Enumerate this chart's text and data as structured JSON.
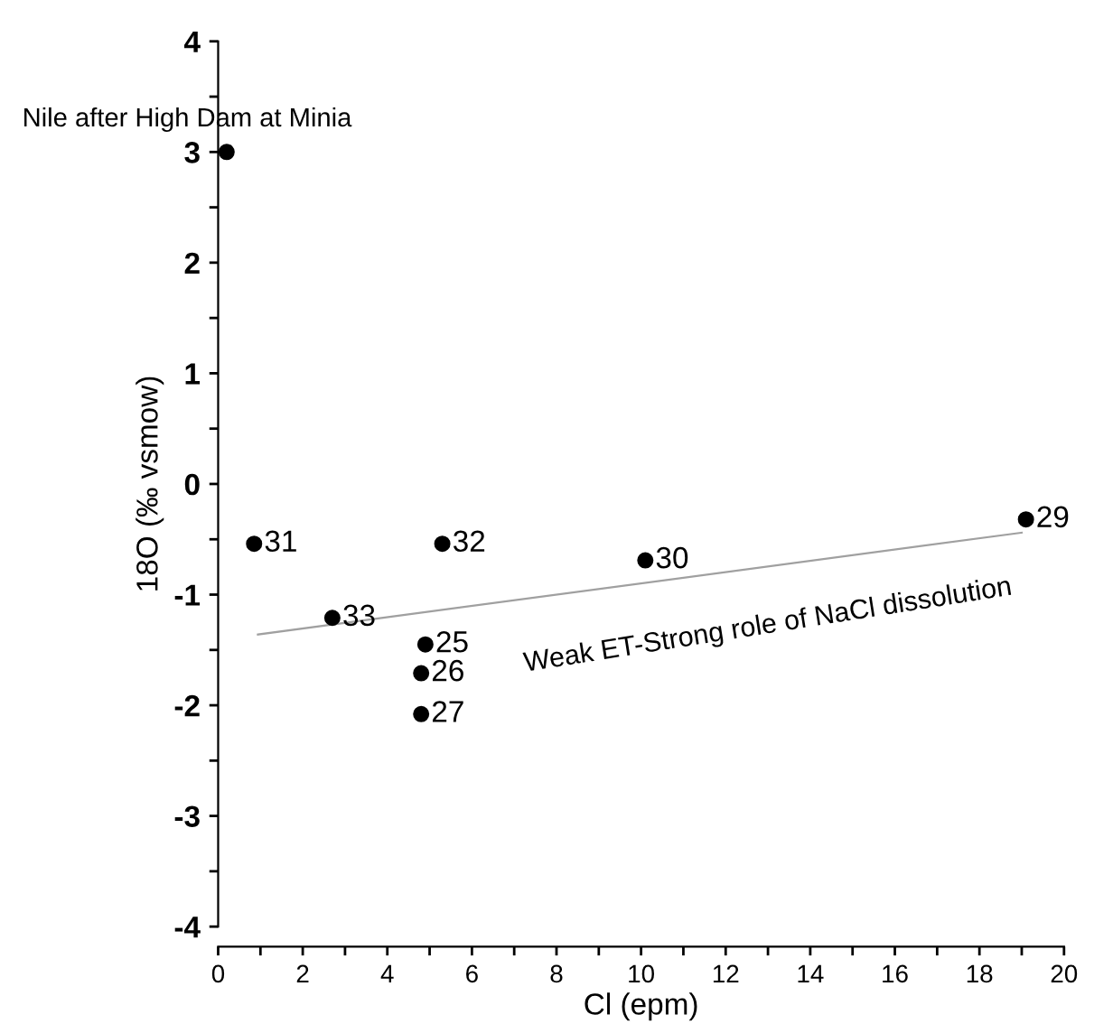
{
  "chart_data": {
    "type": "scatter",
    "xlabel": "Cl (epm)",
    "ylabel": "18O (‰ vsmow)",
    "series": [
      {
        "color": "#000000",
        "marker": "circle",
        "x": [
          0.2,
          0.85,
          5.3,
          10.1,
          19.1,
          2.7,
          4.9,
          4.8,
          4.8
        ],
        "values": [
          3.0,
          -0.54,
          -0.54,
          -0.69,
          -0.32,
          -1.21,
          -1.45,
          -1.71,
          -2.08
        ]
      },
      {
        "type": "line",
        "color": "#a0a0a0",
        "marker": "none",
        "line_style": "solid",
        "x": [
          0.94,
          19.0
        ],
        "values": [
          -1.36,
          -0.44
        ]
      }
    ],
    "annotations": [
      {
        "text": "Nile after High Dam at Minia",
        "x": 0.2,
        "y": 3.0
      },
      {
        "text": "31",
        "x": 0.85,
        "y": -0.54
      },
      {
        "text": "32",
        "x": 5.3,
        "y": -0.54
      },
      {
        "text": "30",
        "x": 10.1,
        "y": -0.69
      },
      {
        "text": "29",
        "x": 19.1,
        "y": -0.32
      },
      {
        "text": "33",
        "x": 2.7,
        "y": -1.21
      },
      {
        "text": "25",
        "x": 4.9,
        "y": -1.45
      },
      {
        "text": "26",
        "x": 4.8,
        "y": -1.71
      },
      {
        "text": "27",
        "x": 4.8,
        "y": -2.08
      },
      {
        "text": "Weak ET-Strong role of NaCl dissolution",
        "x": 13.0,
        "y": -0.82
      }
    ],
    "xlim": [
      0,
      20
    ],
    "ylim": [
      -4,
      4
    ],
    "xticks": [
      0,
      {
        "value": 1,
        "label": null
      },
      2,
      {
        "value": 3,
        "label": null
      },
      4,
      {
        "value": 5,
        "label": null
      },
      6,
      {
        "value": 7,
        "label": null
      },
      8,
      {
        "value": 9,
        "label": null
      },
      10,
      {
        "value": 11,
        "label": null
      },
      12,
      {
        "value": 13,
        "label": null
      },
      14,
      {
        "value": 15,
        "label": null
      },
      16,
      {
        "value": 17,
        "label": null
      },
      18,
      {
        "value": 19,
        "label": null
      },
      20
    ],
    "yticks": [
      -4,
      {
        "value": -3.5,
        "label": null
      },
      -3,
      {
        "value": -2.5,
        "label": null
      },
      -2,
      {
        "value": -1.5,
        "label": null
      },
      -1,
      {
        "value": -0.5,
        "label": null
      },
      0,
      {
        "value": 0.5,
        "label": null
      },
      1,
      {
        "value": 1.5,
        "label": null
      },
      2,
      {
        "value": 2.5,
        "label": null
      },
      3,
      {
        "value": 3.5,
        "label": null
      },
      4
    ],
    "grid": false,
    "legend": false
  }
}
